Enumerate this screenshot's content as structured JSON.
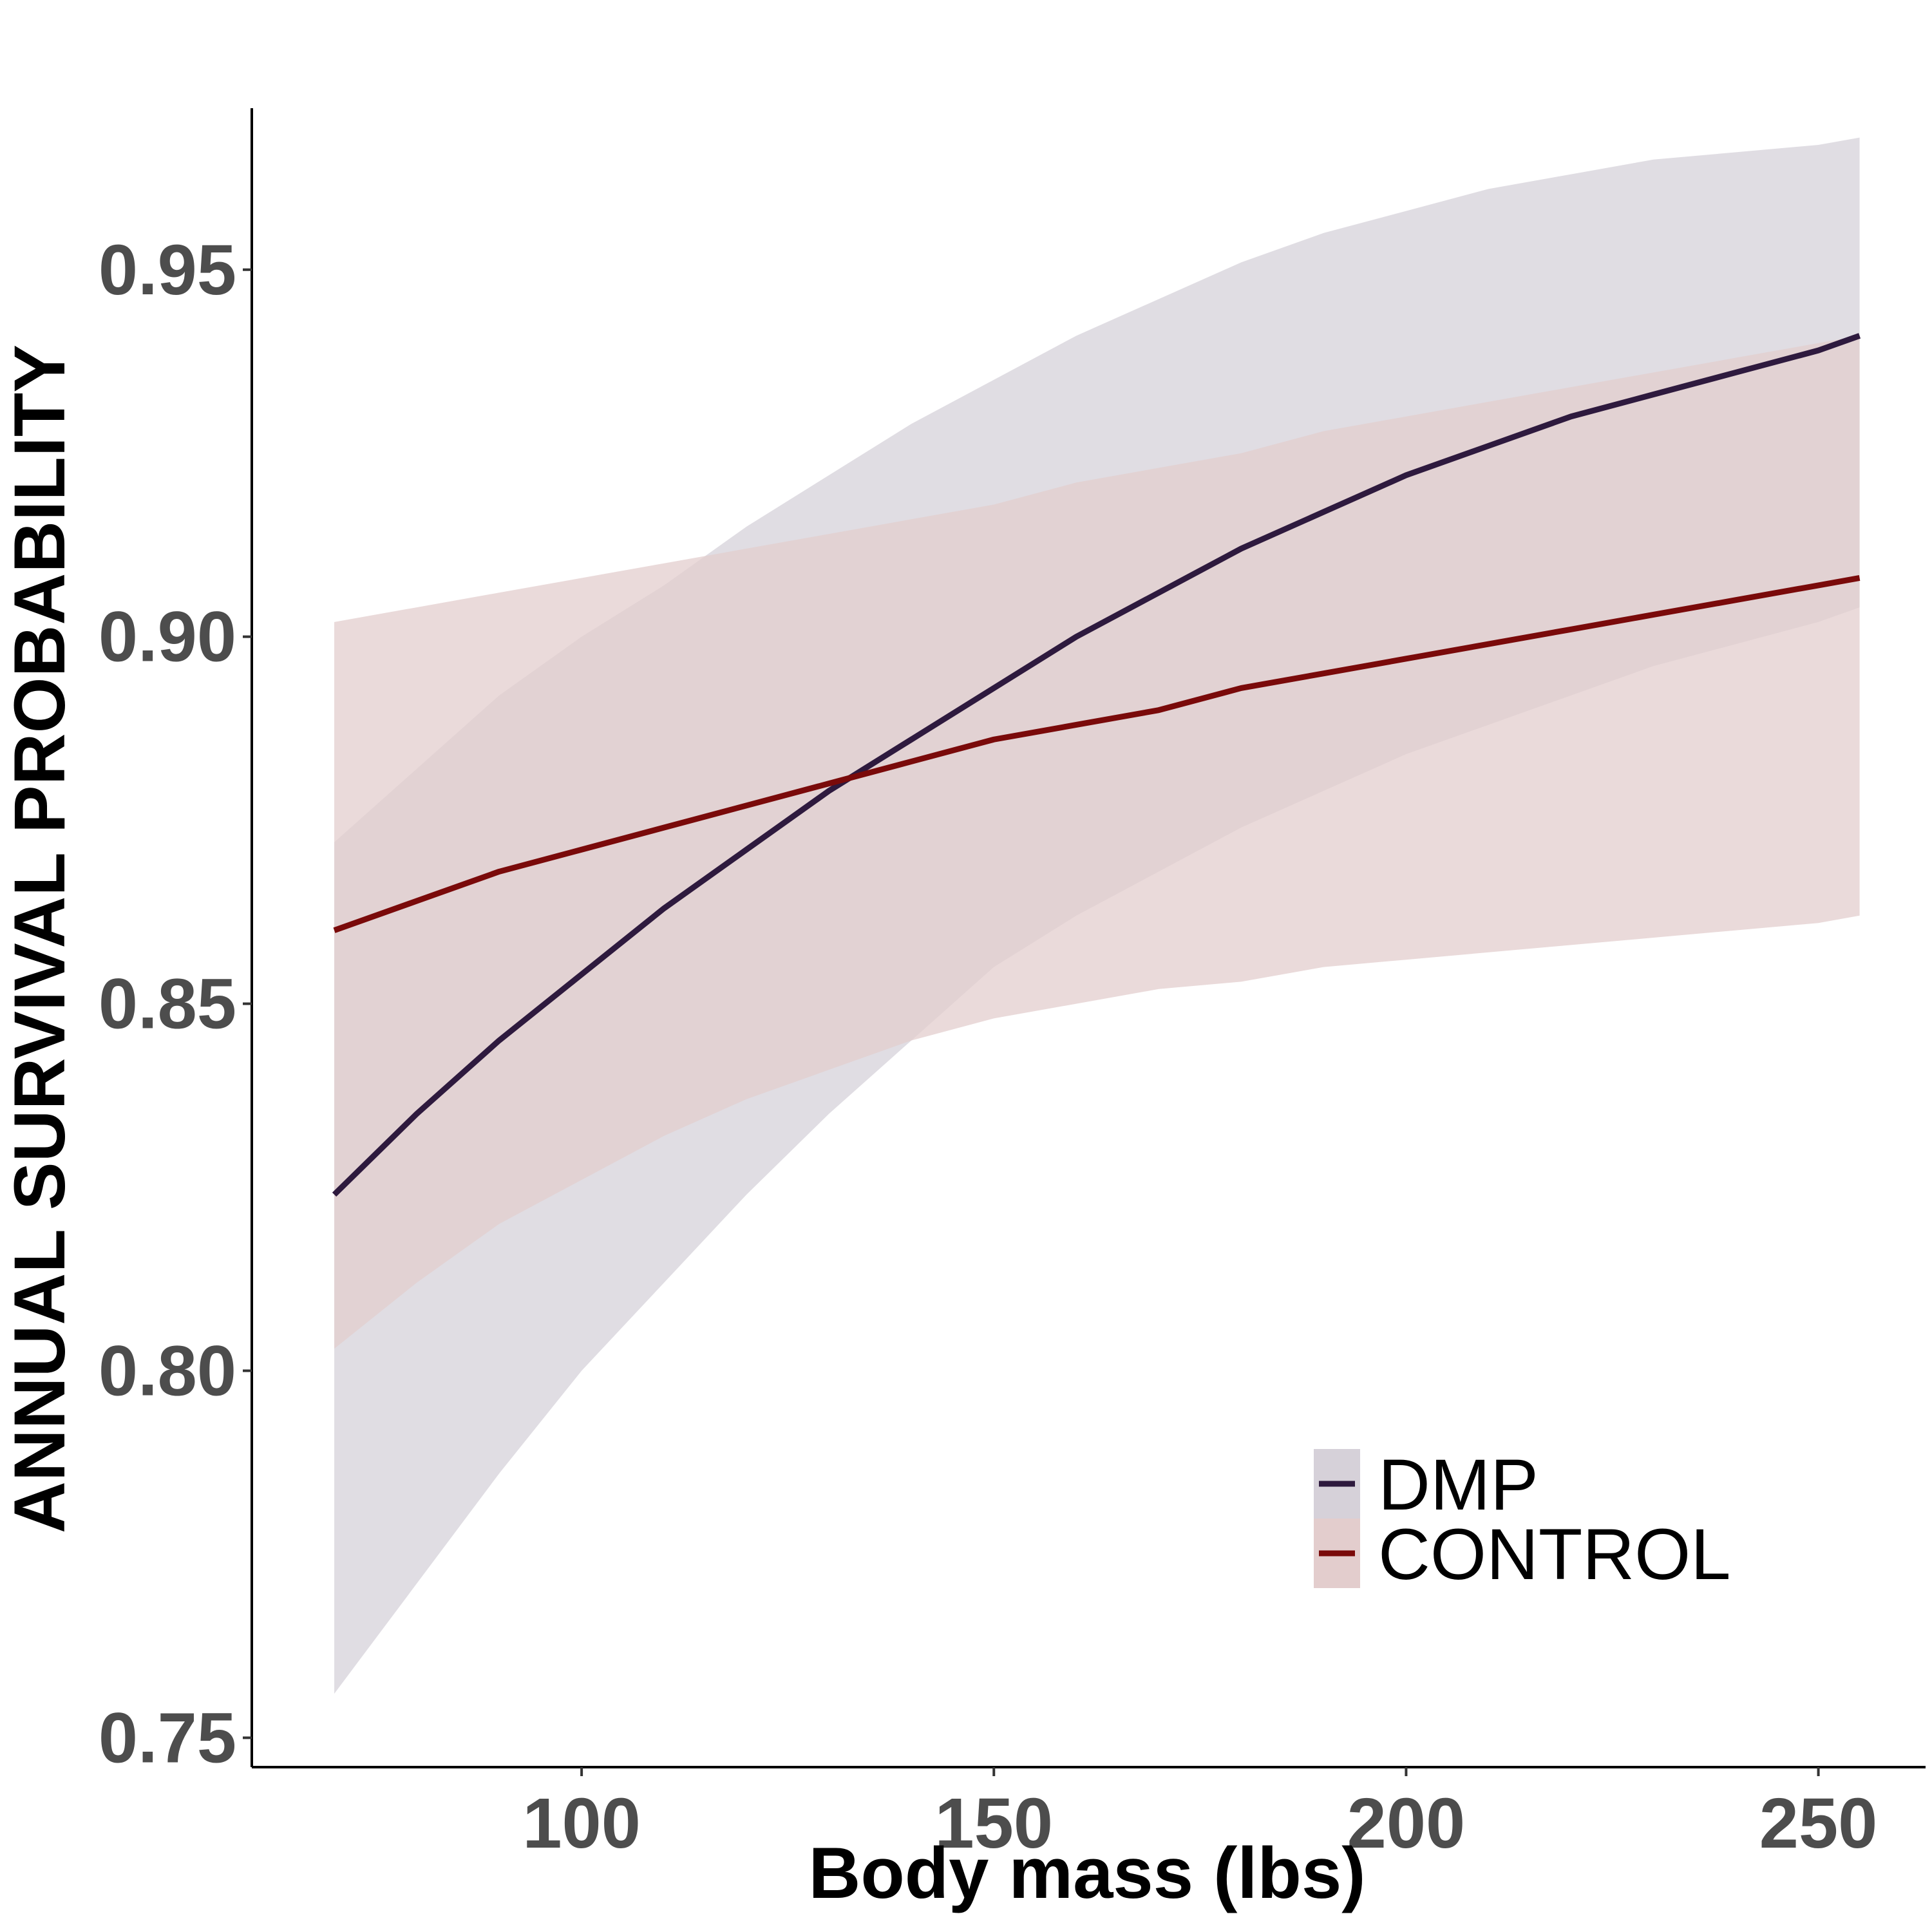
{
  "chart_data": {
    "type": "line",
    "title": "",
    "xlabel": "Body mass (lbs)",
    "ylabel": "ANNUAL SURVIVAL PROBABILITY",
    "xlim": [
      60,
      263
    ],
    "ylim": [
      0.746,
      0.972
    ],
    "xticks": [
      100,
      150,
      200,
      250
    ],
    "xtick_labels": [
      "100",
      "150",
      "200",
      "250"
    ],
    "yticks": [
      0.75,
      0.8,
      0.85,
      0.9,
      0.95
    ],
    "ytick_labels": [
      "0.75",
      "0.80",
      "0.85",
      "0.90",
      "0.95"
    ],
    "grid": false,
    "legend_position": "bottom-right",
    "x": [
      70,
      80,
      90,
      100,
      110,
      120,
      130,
      140,
      150,
      160,
      170,
      180,
      190,
      200,
      210,
      220,
      230,
      240,
      250,
      255
    ],
    "series": [
      {
        "name": "DMP",
        "color": "#2e1a3e",
        "band_color": "#d6d1d9",
        "values": [
          0.824,
          0.835,
          0.845,
          0.854,
          0.863,
          0.871,
          0.879,
          0.886,
          0.893,
          0.9,
          0.906,
          0.912,
          0.917,
          0.922,
          0.926,
          0.93,
          0.933,
          0.936,
          0.939,
          0.941
        ],
        "lower": [
          0.756,
          0.771,
          0.786,
          0.8,
          0.812,
          0.824,
          0.835,
          0.845,
          0.855,
          0.862,
          0.868,
          0.874,
          0.879,
          0.884,
          0.888,
          0.892,
          0.896,
          0.899,
          0.902,
          0.904
        ],
        "upper": [
          0.872,
          0.882,
          0.892,
          0.9,
          0.907,
          0.915,
          0.922,
          0.929,
          0.935,
          0.941,
          0.946,
          0.951,
          0.955,
          0.958,
          0.961,
          0.963,
          0.965,
          0.966,
          0.967,
          0.968
        ]
      },
      {
        "name": "CONTROL",
        "color": "#7a0a0a",
        "band_color": "#e3cdcd",
        "values": [
          0.86,
          0.864,
          0.868,
          0.871,
          0.874,
          0.877,
          0.88,
          0.883,
          0.886,
          0.888,
          0.89,
          0.893,
          0.895,
          0.897,
          0.899,
          0.901,
          0.903,
          0.905,
          0.907,
          0.908
        ],
        "lower": [
          0.803,
          0.812,
          0.82,
          0.826,
          0.832,
          0.837,
          0.841,
          0.845,
          0.848,
          0.85,
          0.852,
          0.853,
          0.855,
          0.856,
          0.857,
          0.858,
          0.859,
          0.86,
          0.861,
          0.862
        ],
        "upper": [
          0.902,
          0.904,
          0.906,
          0.908,
          0.91,
          0.912,
          0.914,
          0.916,
          0.918,
          0.921,
          0.923,
          0.925,
          0.928,
          0.93,
          0.932,
          0.934,
          0.936,
          0.938,
          0.94,
          0.941
        ]
      }
    ]
  }
}
